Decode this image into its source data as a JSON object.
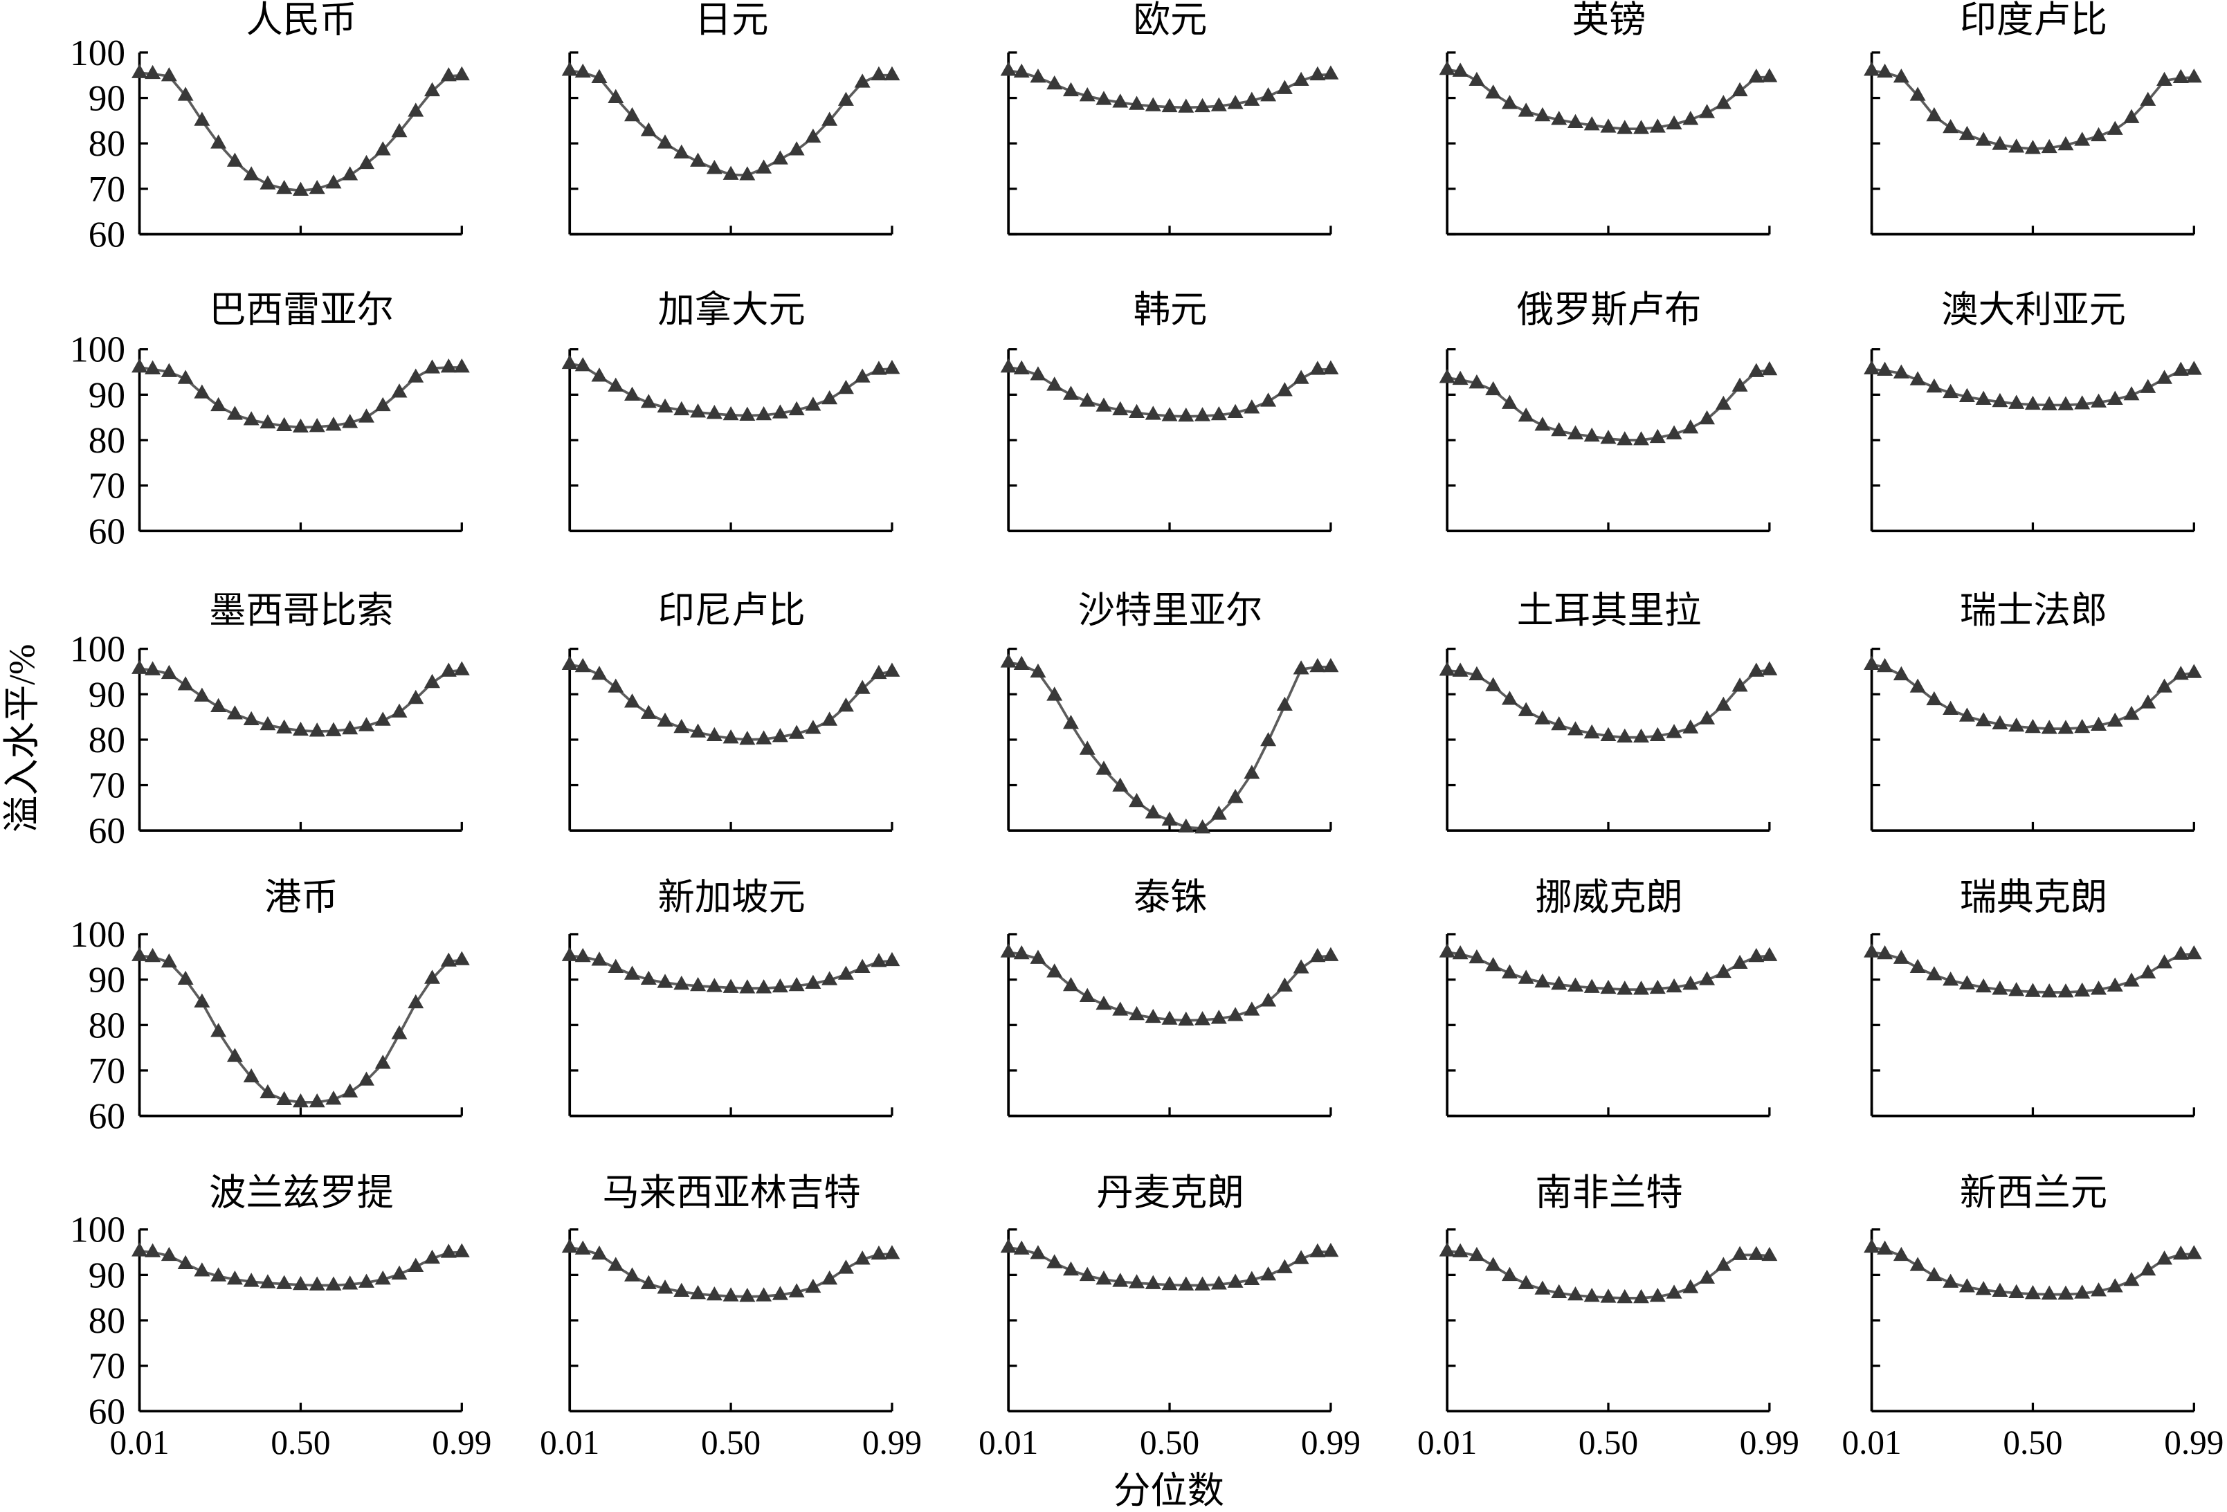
{
  "colors": {
    "line": "#5c5c5c",
    "marker": "#383838",
    "axis": "#000000"
  },
  "chart_data": {
    "type": "line",
    "xlabel": "分位数",
    "ylabel": "溢入水平/%",
    "xlim": [
      0.01,
      0.99
    ],
    "ylim": [
      60,
      100
    ],
    "x_ticks": [
      "0.01",
      "0.50",
      "0.99"
    ],
    "y_ticks": [
      "100",
      "90",
      "80",
      "70",
      "60"
    ],
    "grid": false,
    "x": [
      0.01,
      0.05,
      0.1,
      0.15,
      0.2,
      0.25,
      0.3,
      0.35,
      0.4,
      0.45,
      0.5,
      0.55,
      0.6,
      0.65,
      0.7,
      0.75,
      0.8,
      0.85,
      0.9,
      0.95,
      0.99
    ],
    "panels": [
      {
        "title": "人民币",
        "values": [
          95.5,
          95.3,
          94.8,
          90.5,
          85,
          80,
          76,
          73,
          71,
          70,
          69.6,
          70,
          71.2,
          73,
          75.5,
          78.5,
          82.5,
          87,
          91.5,
          94.8,
          95
        ]
      },
      {
        "title": "日元",
        "values": [
          96,
          95.6,
          94.4,
          90,
          86,
          82.7,
          80,
          77.8,
          76,
          74.4,
          73.1,
          73,
          74.5,
          76.5,
          78.5,
          81.3,
          85,
          89.4,
          93.4,
          95,
          95
        ]
      },
      {
        "title": "欧元",
        "values": [
          96,
          95.6,
          94.5,
          93,
          91.5,
          90.4,
          89.6,
          89,
          88.5,
          88.2,
          88,
          87.9,
          88,
          88.2,
          88.7,
          89.4,
          90.4,
          92,
          93.8,
          95,
          95.2
        ]
      },
      {
        "title": "英镑",
        "values": [
          96.2,
          95.8,
          93.8,
          91,
          88.7,
          87,
          86,
          85.2,
          84.5,
          84,
          83.5,
          83.2,
          83.2,
          83.5,
          84.2,
          85.2,
          86.7,
          88.7,
          91.5,
          94.5,
          94.6
        ]
      },
      {
        "title": "印度卢比",
        "values": [
          96,
          95.6,
          94.5,
          90.5,
          86,
          83.4,
          81.9,
          80.6,
          79.7,
          79.1,
          78.8,
          79,
          79.6,
          80.6,
          81.6,
          83,
          85.6,
          89.4,
          93.8,
          94.4,
          94.5
        ]
      },
      {
        "title": "巴西雷亚尔",
        "values": [
          96,
          95.6,
          95,
          93.5,
          90.3,
          87.5,
          85.6,
          84.4,
          83.7,
          83.1,
          82.8,
          82.9,
          83.2,
          83.8,
          85,
          87.5,
          90.5,
          93.8,
          95.8,
          96,
          96
        ]
      },
      {
        "title": "加拿大元",
        "values": [
          96.8,
          96.3,
          94,
          91.8,
          89.8,
          88.2,
          87.2,
          86.6,
          86.1,
          85.8,
          85.5,
          85.4,
          85.5,
          85.9,
          86.6,
          87.6,
          89,
          91.3,
          93.8,
          95.5,
          95.7
        ]
      },
      {
        "title": "韩元",
        "values": [
          96,
          95.6,
          94.3,
          92,
          90,
          88.5,
          87.4,
          86.6,
          86,
          85.6,
          85.3,
          85.2,
          85.3,
          85.5,
          86,
          87,
          88.5,
          90.8,
          93.5,
          95.5,
          95.6
        ]
      },
      {
        "title": "俄罗斯卢布",
        "values": [
          93.7,
          93.3,
          92.5,
          91,
          88,
          85.2,
          83.2,
          82,
          81.3,
          80.8,
          80.3,
          80,
          80,
          80.5,
          81.3,
          82.6,
          84.6,
          87.8,
          91.8,
          95,
          95.4
        ]
      },
      {
        "title": "澳大利亚元",
        "values": [
          95.6,
          95.3,
          94.7,
          93.2,
          91.6,
          90.4,
          89.5,
          88.9,
          88.4,
          88,
          87.8,
          87.7,
          87.7,
          87.9,
          88.3,
          88.9,
          89.9,
          91.5,
          93.5,
          95.3,
          95.5
        ]
      },
      {
        "title": "墨西哥比索",
        "values": [
          95.6,
          95.3,
          94.5,
          92,
          89.5,
          87.2,
          85.6,
          84.3,
          83.2,
          82.5,
          82,
          81.8,
          81.9,
          82.3,
          83,
          84.2,
          86,
          89,
          92.5,
          95,
          95.3
        ]
      },
      {
        "title": "印尼卢比",
        "values": [
          96.5,
          96,
          94.3,
          91.5,
          88.2,
          85.7,
          84,
          82.6,
          81.6,
          80.8,
          80.3,
          80,
          80.1,
          80.6,
          81.3,
          82.4,
          84.2,
          87.3,
          91.2,
          94.5,
          95
        ]
      },
      {
        "title": "沙特里亚尔",
        "values": [
          97,
          96.5,
          94.8,
          89.7,
          83.5,
          77.8,
          73.4,
          69.7,
          66.3,
          63.8,
          62.2,
          60.7,
          60.5,
          63.5,
          67.2,
          72.5,
          79.7,
          87.5,
          95.5,
          96,
          96
        ]
      },
      {
        "title": "土耳其里拉",
        "values": [
          95.2,
          95,
          94.2,
          91.8,
          88.8,
          86.3,
          84.5,
          83.2,
          82.1,
          81.4,
          80.8,
          80.5,
          80.5,
          80.8,
          81.5,
          82.5,
          84.5,
          87.5,
          91.7,
          95,
          95.3
        ]
      },
      {
        "title": "瑞士法郎",
        "values": [
          96.5,
          96,
          94.2,
          91.5,
          88.7,
          86.6,
          85.1,
          84.1,
          83.4,
          82.9,
          82.6,
          82.4,
          82.4,
          82.6,
          83.1,
          84,
          85.5,
          88,
          91.5,
          94.3,
          94.7
        ]
      },
      {
        "title": "港币",
        "values": [
          95.2,
          95,
          93.8,
          90,
          85,
          78.5,
          73,
          68.5,
          65,
          63.5,
          63,
          63,
          63.6,
          65.2,
          67.8,
          71.5,
          78,
          84.8,
          90.2,
          94,
          94.3
        ]
      },
      {
        "title": "新加坡元",
        "values": [
          95.2,
          95,
          94.2,
          92.6,
          91.1,
          90,
          89.3,
          88.9,
          88.6,
          88.4,
          88.2,
          88.1,
          88.1,
          88.3,
          88.6,
          89.1,
          89.9,
          91.1,
          92.6,
          93.9,
          94.1
        ]
      },
      {
        "title": "泰铢",
        "values": [
          96,
          95.6,
          94.6,
          91.6,
          88.6,
          86.2,
          84.5,
          83.2,
          82.2,
          81.6,
          81.2,
          81,
          81.1,
          81.4,
          82,
          83.2,
          85.2,
          88.5,
          92.5,
          95,
          95.2
        ]
      },
      {
        "title": "挪威克朗",
        "values": [
          96,
          95.6,
          94.7,
          93,
          91.4,
          90.2,
          89.4,
          88.9,
          88.5,
          88.2,
          88,
          87.8,
          87.8,
          88,
          88.3,
          88.9,
          89.9,
          91.5,
          93.5,
          95,
          95.2
        ]
      },
      {
        "title": "瑞典克朗",
        "values": [
          96,
          95.6,
          94.6,
          92.6,
          91,
          89.8,
          89,
          88.3,
          87.8,
          87.5,
          87.3,
          87.2,
          87.2,
          87.4,
          87.8,
          88.5,
          89.6,
          91.4,
          93.6,
          95.5,
          95.6
        ]
      },
      {
        "title": "波兰兹罗提",
        "values": [
          95.2,
          95,
          94.2,
          92.4,
          90.8,
          89.7,
          89,
          88.5,
          88.2,
          88,
          87.8,
          87.7,
          87.7,
          87.9,
          88.3,
          89,
          90.1,
          91.8,
          93.6,
          94.9,
          95
        ]
      },
      {
        "title": "马来西亚林吉特",
        "values": [
          96,
          95.6,
          94.5,
          92,
          89.7,
          88,
          87,
          86.3,
          85.8,
          85.5,
          85.3,
          85.2,
          85.3,
          85.6,
          86.2,
          87.2,
          89,
          91.4,
          93.4,
          94.5,
          94.6
        ]
      },
      {
        "title": "丹麦克朗",
        "values": [
          96,
          95.6,
          94.6,
          92.6,
          91,
          89.8,
          89,
          88.5,
          88.2,
          88,
          87.8,
          87.7,
          87.7,
          87.9,
          88.3,
          88.9,
          89.9,
          91.5,
          93.5,
          95,
          95.1
        ]
      },
      {
        "title": "南非兰特",
        "values": [
          95.2,
          95,
          94.2,
          92,
          89.8,
          88,
          86.8,
          86,
          85.5,
          85.2,
          85,
          84.9,
          84.9,
          85.2,
          85.9,
          87.1,
          89.2,
          92,
          94.4,
          94.4,
          94.2
        ]
      },
      {
        "title": "新西兰元",
        "values": [
          96,
          95.6,
          94.2,
          92,
          89.8,
          88.3,
          87.3,
          86.7,
          86.3,
          86,
          85.8,
          85.7,
          85.7,
          85.9,
          86.4,
          87.3,
          88.7,
          91,
          93.4,
          94.5,
          94.6
        ]
      }
    ]
  }
}
